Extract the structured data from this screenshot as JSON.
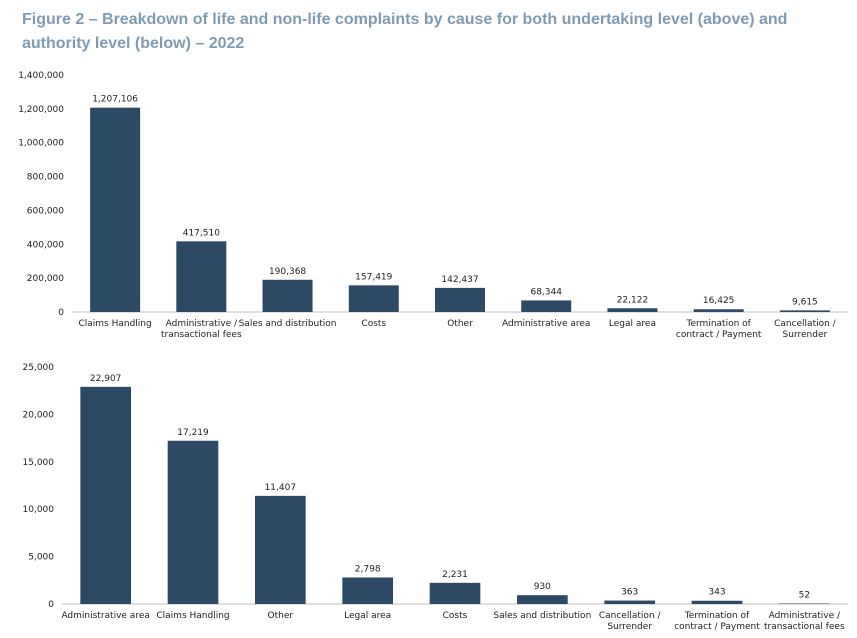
{
  "title": "Figure 2 – Breakdown of life and non-life complaints by cause for both undertaking level (above) and authority level (below) – 2022",
  "bar_color": "#2c4a66",
  "title_color": "#7f9bb3",
  "chart_data": [
    {
      "type": "bar",
      "categories": [
        "Claims Handling",
        "Administrative / transactional fees",
        "Sales and distribution",
        "Costs",
        "Other",
        "Administrative area",
        "Legal area",
        "Termination of contract / Payment",
        "Cancellation / Surrender"
      ],
      "category_lines": [
        [
          "Claims Handling"
        ],
        [
          "Administrative /",
          "transactional fees"
        ],
        [
          "Sales and distribution"
        ],
        [
          "Costs"
        ],
        [
          "Other"
        ],
        [
          "Administrative area"
        ],
        [
          "Legal area"
        ],
        [
          "Termination of",
          "contract / Payment"
        ],
        [
          "Cancellation /",
          "Surrender"
        ]
      ],
      "values": [
        1207106,
        417510,
        190368,
        157419,
        142437,
        68344,
        22122,
        16425,
        9615
      ],
      "data_labels": [
        "1,207,106",
        "417,510",
        "190,368",
        "157,419",
        "142,437",
        "68,344",
        "22,122",
        "16,425",
        "9,615"
      ],
      "ylim": [
        0,
        1400000
      ],
      "yticks": [
        0,
        200000,
        400000,
        600000,
        800000,
        1000000,
        1200000,
        1400000
      ],
      "ytick_labels": [
        "0",
        "200,000",
        "400,000",
        "600,000",
        "800,000",
        "1,000,000",
        "1,200,000",
        "1,400,000"
      ],
      "grid": false
    },
    {
      "type": "bar",
      "categories": [
        "Administrative area",
        "Claims Handling",
        "Other",
        "Legal area",
        "Costs",
        "Sales and distribution",
        "Cancellation / Surrender",
        "Termination of contract / Payment",
        "Administrative / transactional fees"
      ],
      "category_lines": [
        [
          "Administrative area"
        ],
        [
          "Claims Handling"
        ],
        [
          "Other"
        ],
        [
          "Legal area"
        ],
        [
          "Costs"
        ],
        [
          "Sales and distribution"
        ],
        [
          "Cancellation /",
          "Surrender"
        ],
        [
          "Termination of",
          "contract / Payment"
        ],
        [
          "Administrative /",
          "transactional fees"
        ]
      ],
      "values": [
        22907,
        17219,
        11407,
        2798,
        2231,
        930,
        363,
        343,
        52
      ],
      "data_labels": [
        "22,907",
        "17,219",
        "11,407",
        "2,798",
        "2,231",
        "930",
        "363",
        "343",
        "52"
      ],
      "ylim": [
        0,
        25000
      ],
      "yticks": [
        0,
        5000,
        10000,
        15000,
        20000,
        25000
      ],
      "ytick_labels": [
        "0",
        "5,000",
        "10,000",
        "15,000",
        "20,000",
        "25,000"
      ],
      "grid": false
    }
  ]
}
